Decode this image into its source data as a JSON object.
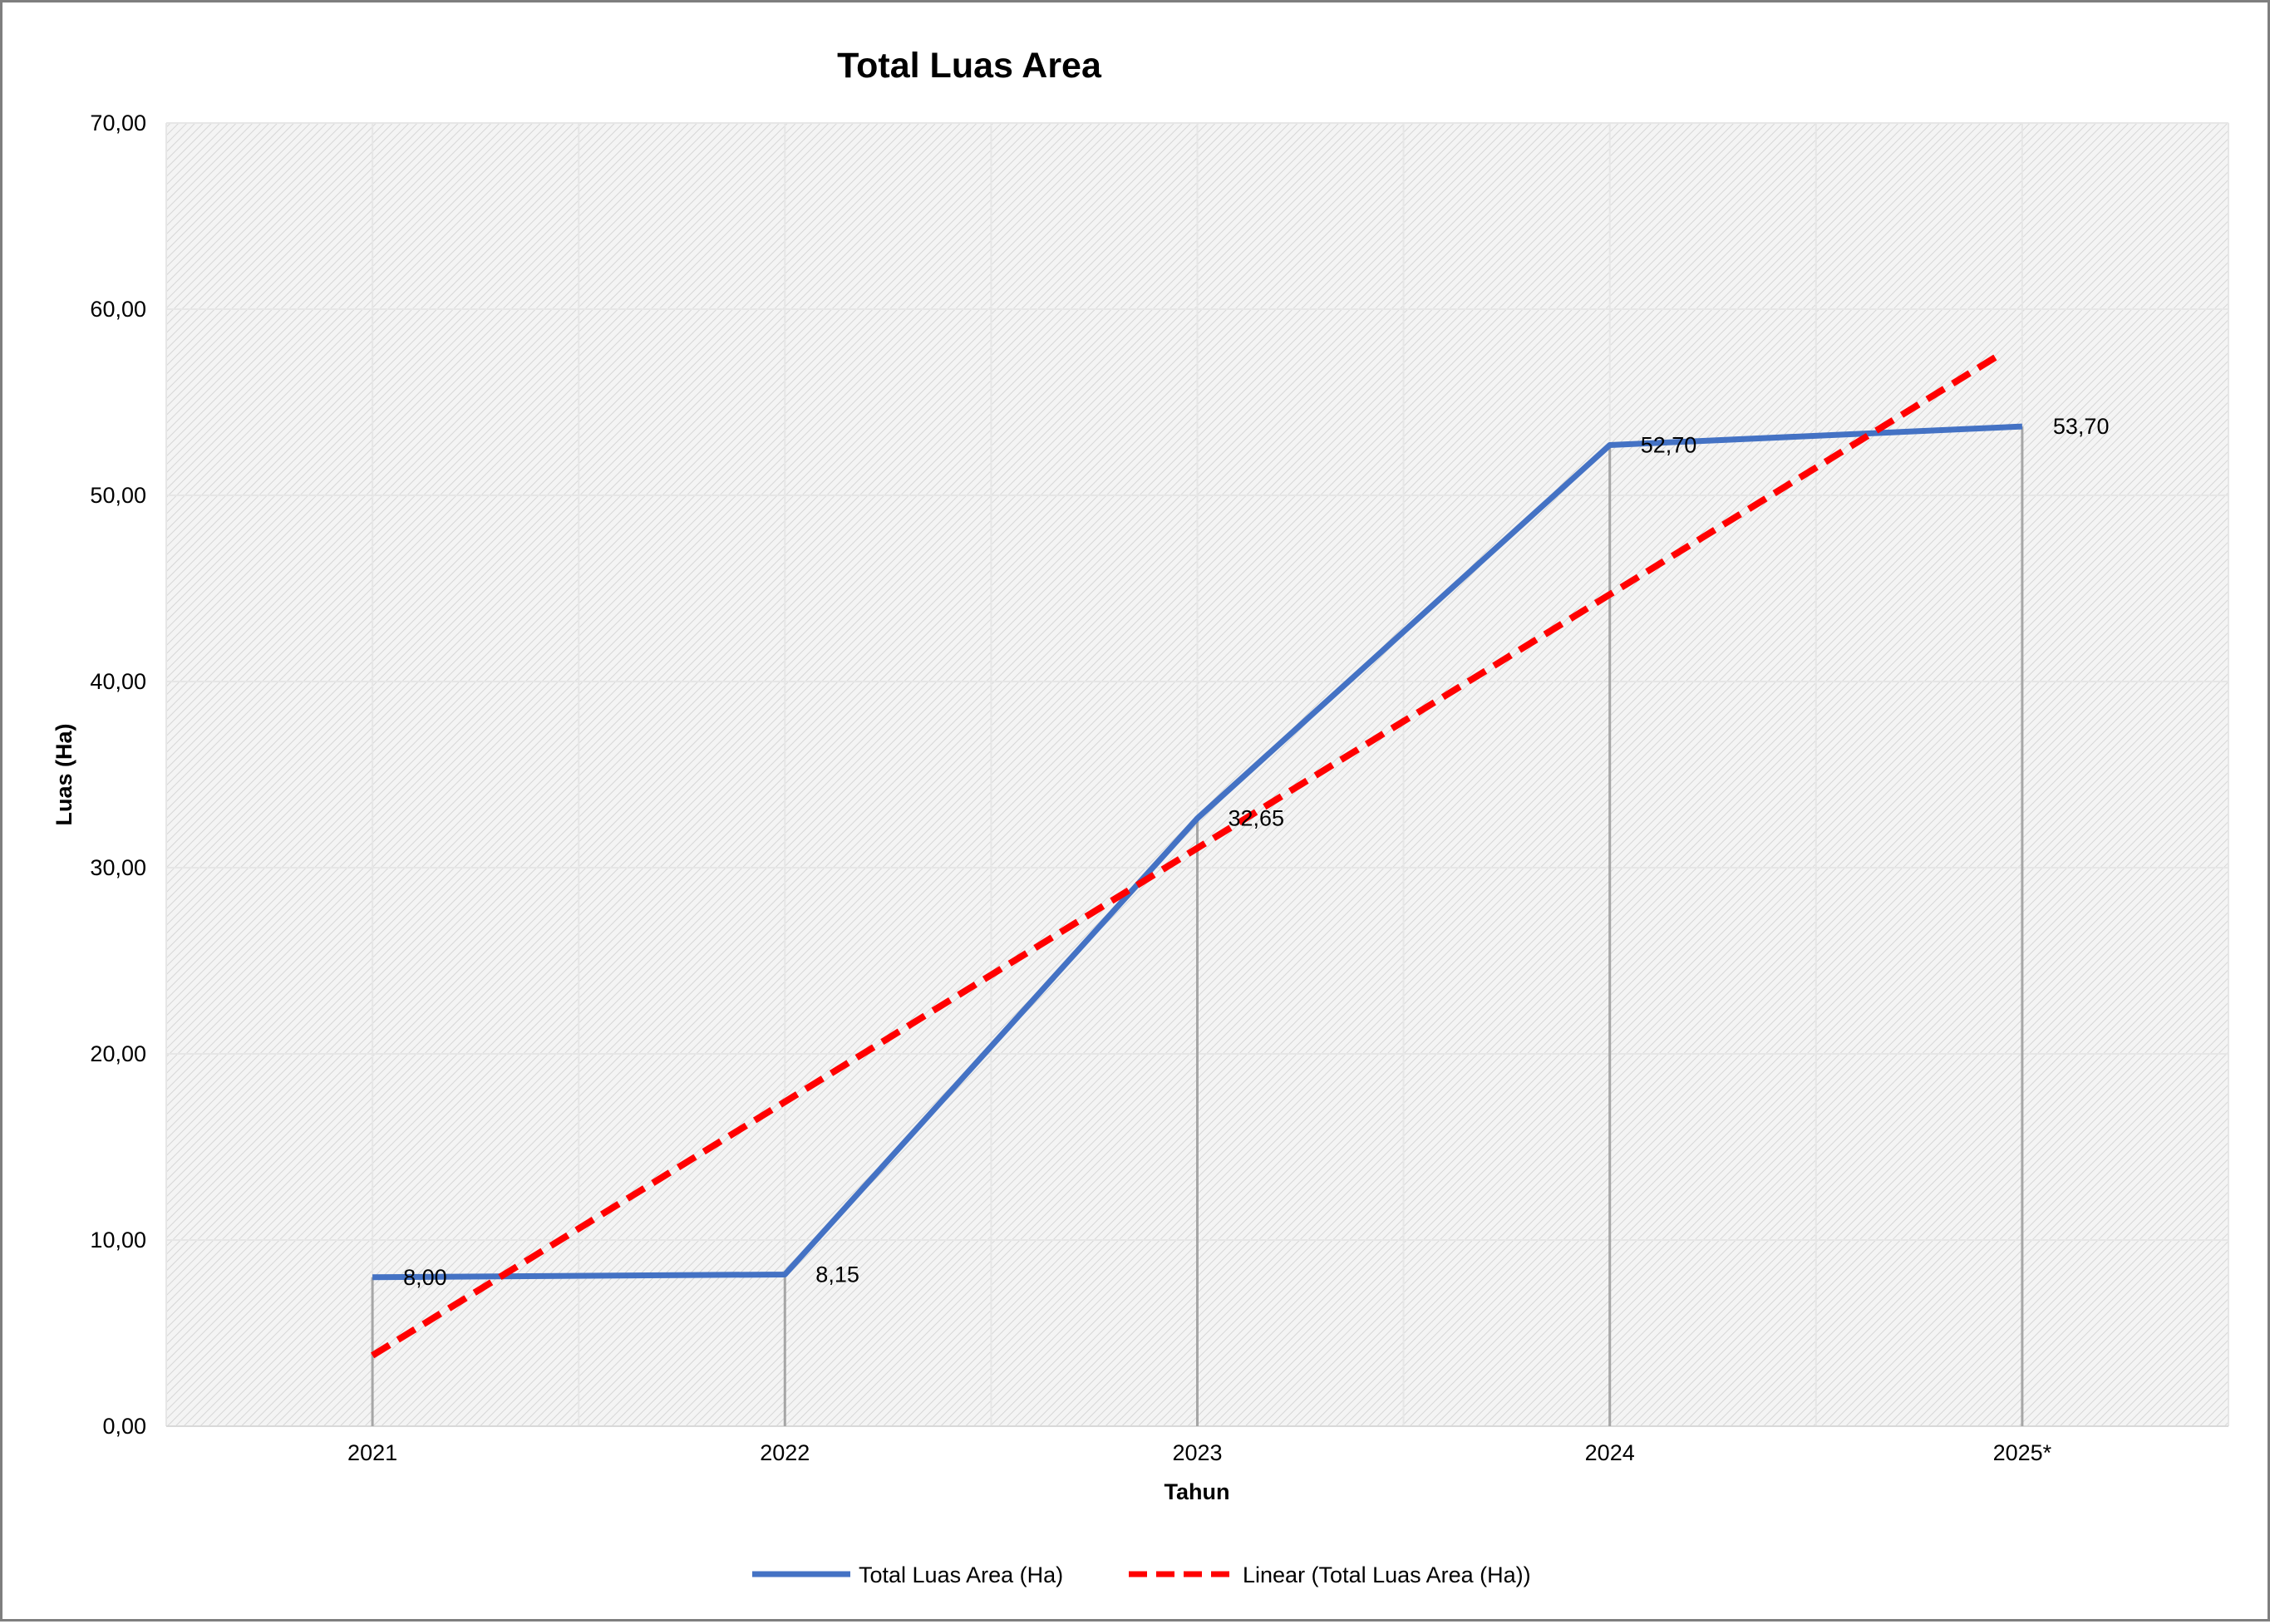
{
  "chart_data": {
    "type": "line",
    "title": "Total Luas Area",
    "xlabel": "Tahun",
    "ylabel": "Luas  (Ha)",
    "categories": [
      "2021",
      "2022",
      "2023",
      "2024",
      "2025*"
    ],
    "ylim": [
      0,
      70
    ],
    "yticks": [
      "0,00",
      "10,00",
      "20,00",
      "30,00",
      "40,00",
      "50,00",
      "60,00",
      "70,00"
    ],
    "grid": true,
    "legend_position": "bottom",
    "series": [
      {
        "name": "Total Luas Area (Ha)",
        "values": [
          8.0,
          8.15,
          32.65,
          52.7,
          53.7
        ],
        "labels": [
          "8,00",
          "8,15",
          "32,65",
          "52,70",
          "53,70"
        ],
        "color": "#4472c4",
        "style": "solid"
      }
    ],
    "trendline": {
      "name": "Linear (Total Luas Area (Ha))",
      "type": "linear",
      "values": [
        3.8,
        17.4,
        31.0,
        44.7,
        58.3
      ],
      "color": "#ff0000",
      "style": "dashed"
    },
    "colors": {
      "plot_background": "#f2f2f2",
      "hatch": "#d4d4d4",
      "gridline": "#e6e6e6",
      "drop_line": "#a6a6a6"
    }
  }
}
